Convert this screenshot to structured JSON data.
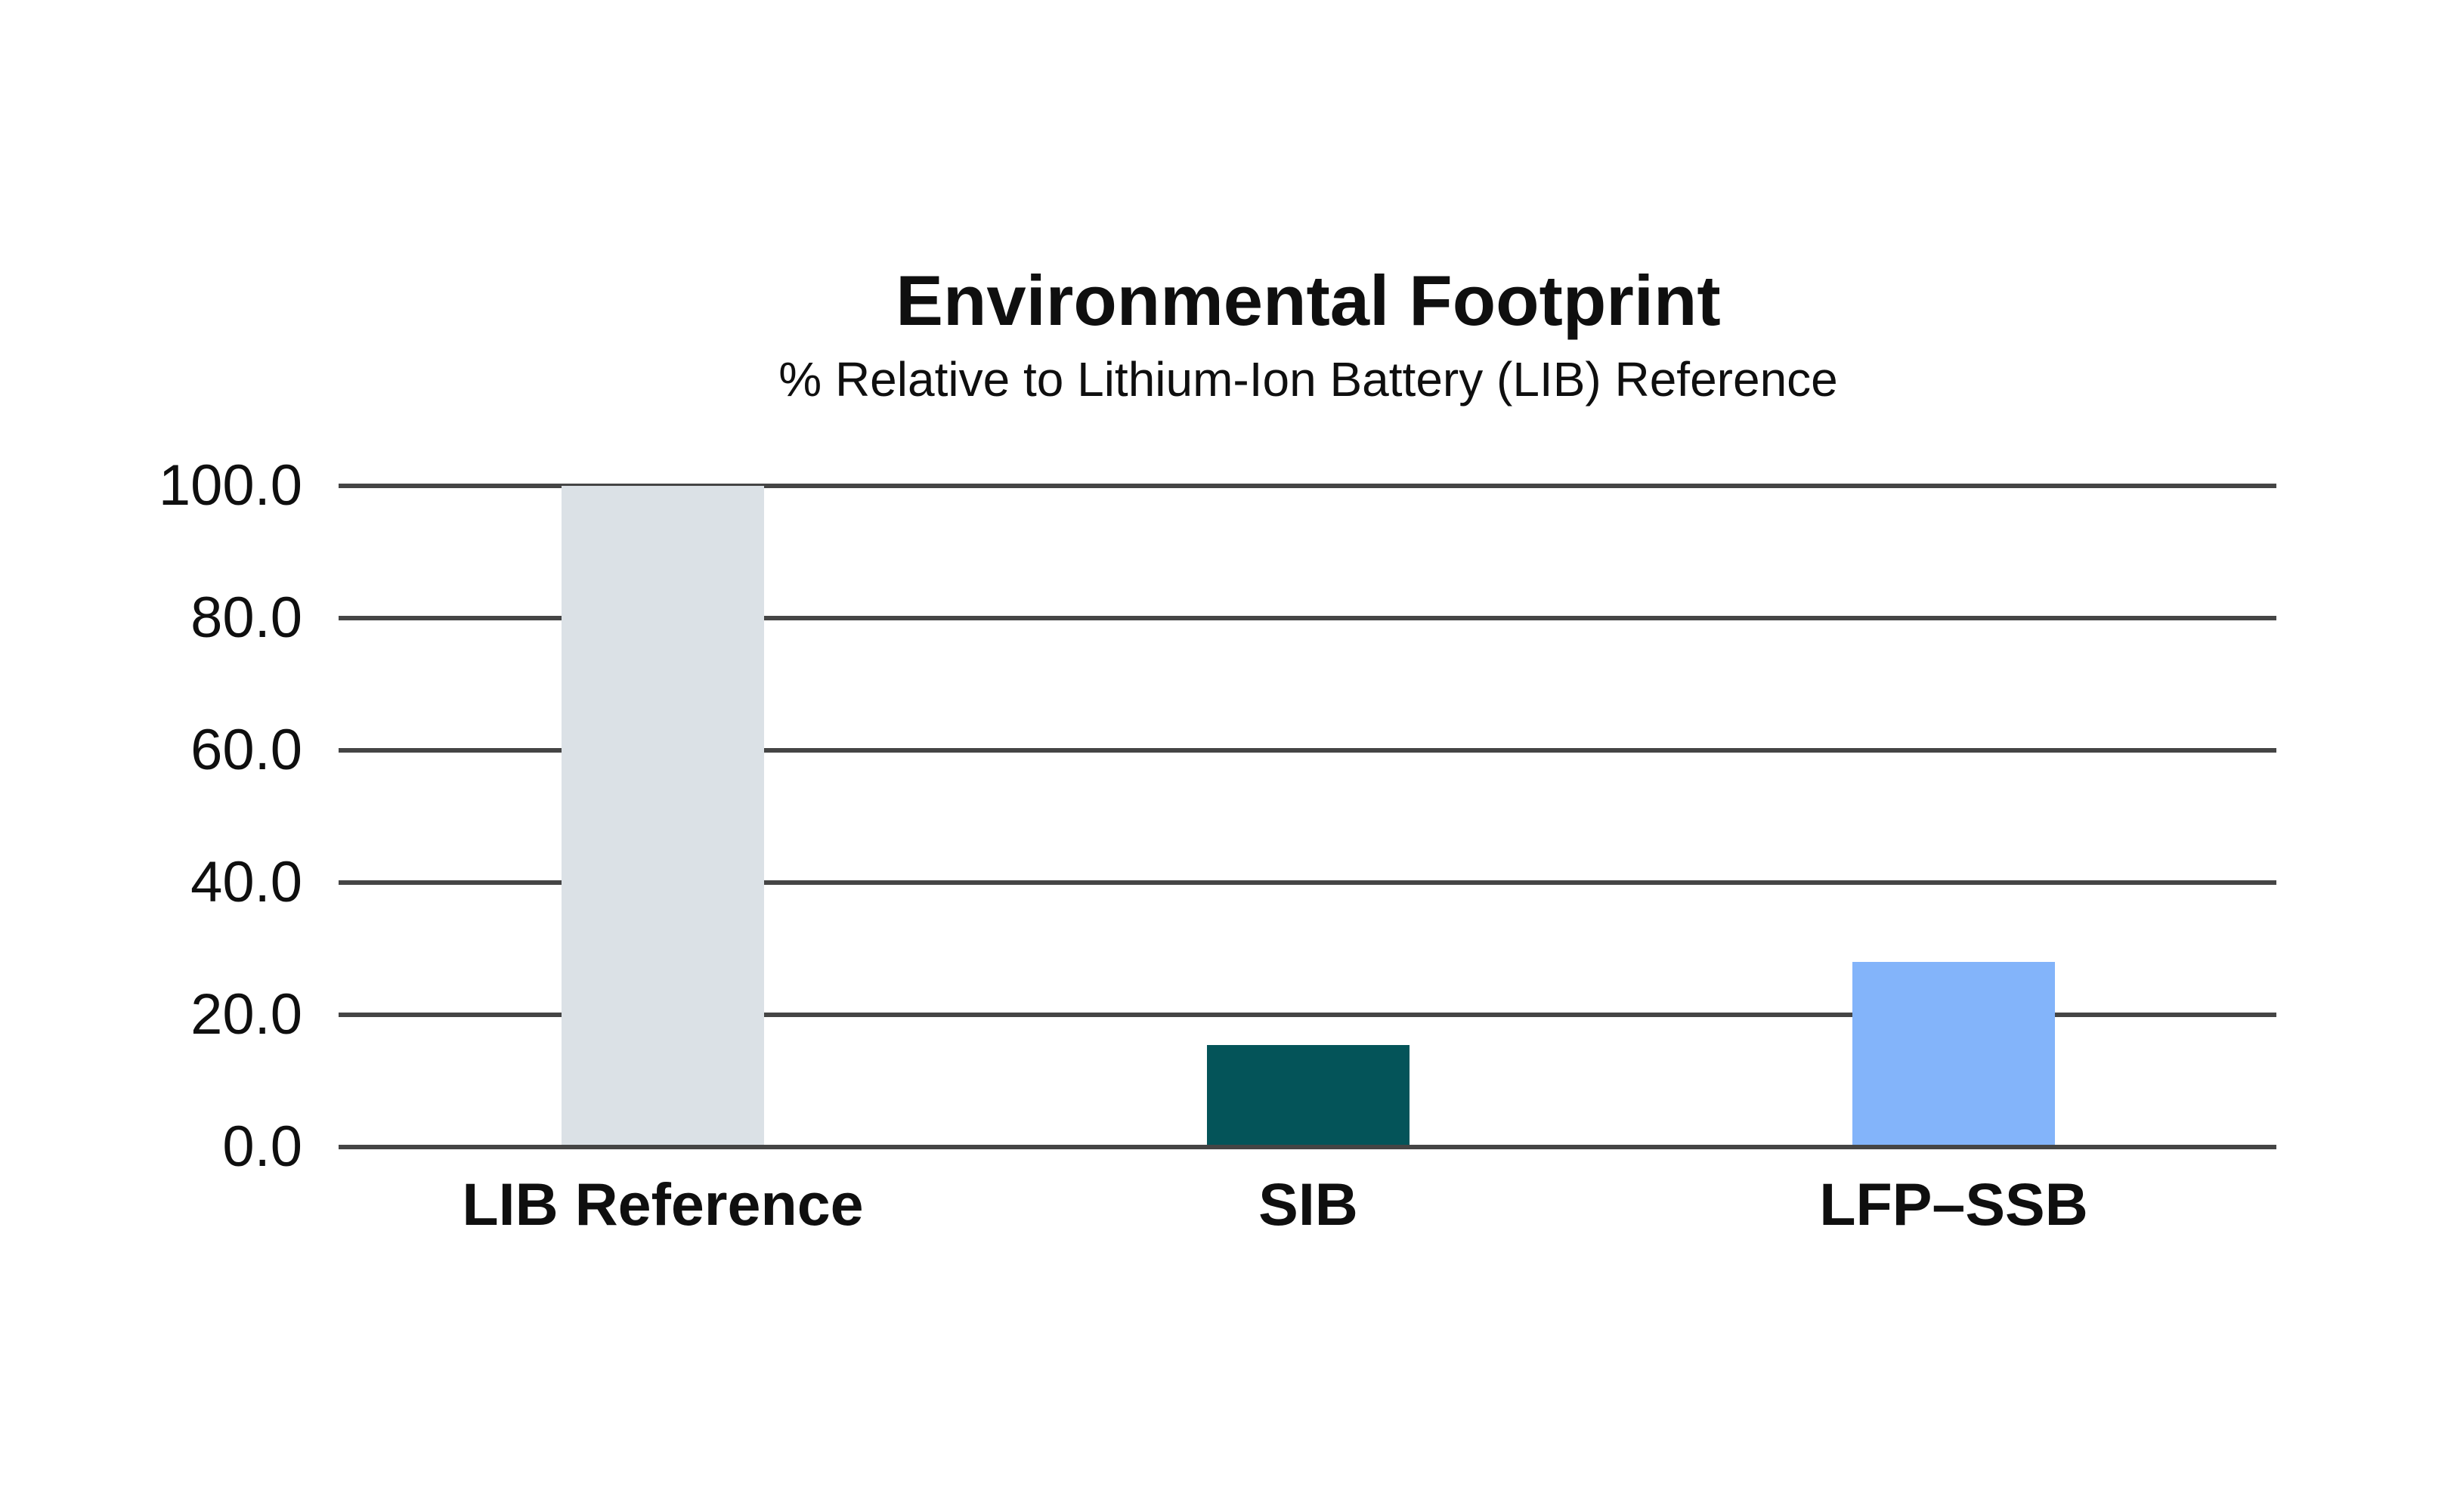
{
  "header": {
    "title": "Environmental Footprint",
    "subtitle": "% Relative to Lithium-Ion Battery (LIB) Reference"
  },
  "chart_data": {
    "type": "bar",
    "title": "Environmental Footprint",
    "subtitle": "% Relative to Lithium-Ion Battery (LIB) Reference",
    "categories": [
      "LIB Reference",
      "SIB",
      "LFP–SSB"
    ],
    "values": [
      100.0,
      15.4,
      28.0
    ],
    "bar_colors": [
      "#dbe1e6",
      "#045459",
      "#83b4fa"
    ],
    "xlabel": "",
    "ylabel": "",
    "ylim": [
      0,
      100
    ],
    "yticks": [
      0,
      20,
      40,
      60,
      80,
      100
    ],
    "ytick_labels": [
      "0.0",
      "20.0",
      "40.0",
      "60.0",
      "80.0",
      "100.0"
    ],
    "grid": "horizontal",
    "gridline_color": "#454545",
    "legend_position": "none",
    "background_color": "#ffffff",
    "text_color": "#0f0f0f"
  }
}
